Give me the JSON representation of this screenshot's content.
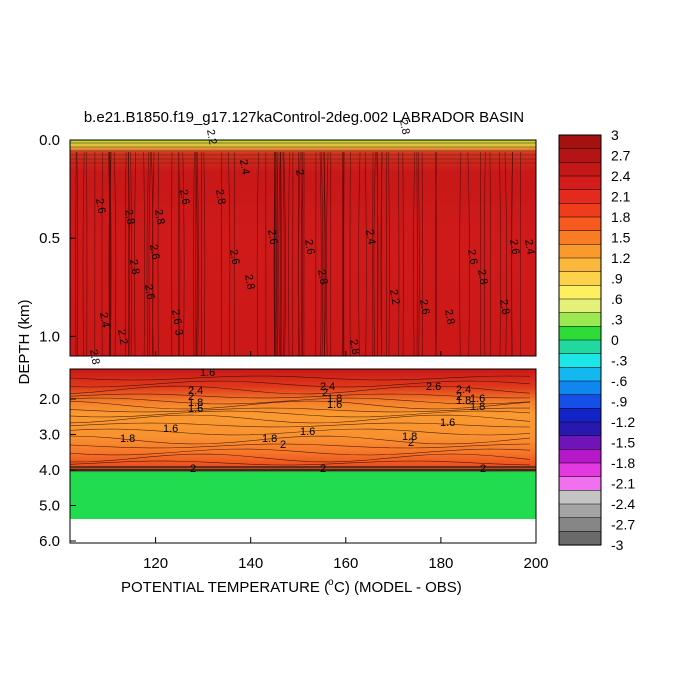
{
  "chart_data": {
    "type": "heatmap",
    "title": "b.e21.B1850.f19_g17.127kaControl-2deg.002 LABRADOR BASIN",
    "xlabel": "POTENTIAL TEMPERATURE (",
    "xlabel_unit": "C) (MODEL - OBS)",
    "ylabel": "DEPTH (km)",
    "xlim": [
      102,
      200
    ],
    "x_ticks": [
      "120",
      "140",
      "160",
      "180",
      "200"
    ],
    "upper_panel": {
      "ylim": [
        0.0,
        1.1
      ],
      "y_ticks": [
        "0.0",
        "0.5",
        "1.0"
      ]
    },
    "lower_panel": {
      "ylim": [
        1.1,
        6.0
      ],
      "y_ticks": [
        "2.0",
        "3.0",
        "4.0",
        "5.0",
        "6.0"
      ]
    },
    "colorbar": {
      "labels": [
        "3",
        "2.7",
        "2.4",
        "2.1",
        "1.8",
        "1.5",
        "1.2",
        ".9",
        ".6",
        ".3",
        "0",
        "-.3",
        "-.6",
        "-.9",
        "-1.2",
        "-1.5",
        "-1.8",
        "-2.1",
        "-2.4",
        "-2.7",
        "-3"
      ],
      "colors": [
        "#a51010",
        "#b51414",
        "#c41818",
        "#d41c1c",
        "#e42a1c",
        "#ef3c1c",
        "#f65a1e",
        "#f97c22",
        "#fb9a2c",
        "#fcb83a",
        "#fdd24a",
        "#fdf060",
        "#e4f078",
        "#9ce850",
        "#2edc38",
        "#20d8a0",
        "#1ce6e6",
        "#14b8f0",
        "#1086f0",
        "#1450e8",
        "#1224c8",
        "#2818b0",
        "#6e14b8",
        "#b418c8",
        "#e438e0",
        "#f070f0",
        "#c4c4c4",
        "#a4a4a4",
        "#868686",
        "#6a6a6a"
      ]
    },
    "contour_labels_upper": [
      "2.6",
      "2.4",
      "2.2",
      "2.8",
      "2.8",
      "2.6",
      "3",
      "2.8",
      "2.6",
      "2.4",
      "2.2",
      "2",
      "2.6",
      "2.8",
      "2.8",
      "2.4",
      "2.2",
      "2.8",
      "2.6",
      "2.6",
      "2.8",
      "2.8",
      "2.6",
      "2.4",
      "2.6",
      "2.8",
      "2.6",
      "2.6",
      "2.8",
      "2.6",
      "2.8",
      "2.8"
    ],
    "contour_labels_lower": [
      "2.4",
      "2",
      "1.8",
      "1.6",
      "1.8",
      "1.6",
      "2",
      "1.8",
      "1.6",
      "2.4",
      "2",
      "1.8",
      "1.6",
      "1.8",
      "1.6",
      "2",
      "1.8",
      "1.6",
      "2.6",
      "2.4",
      "2",
      "1.8",
      "1.6",
      "2",
      "2",
      "2"
    ]
  }
}
